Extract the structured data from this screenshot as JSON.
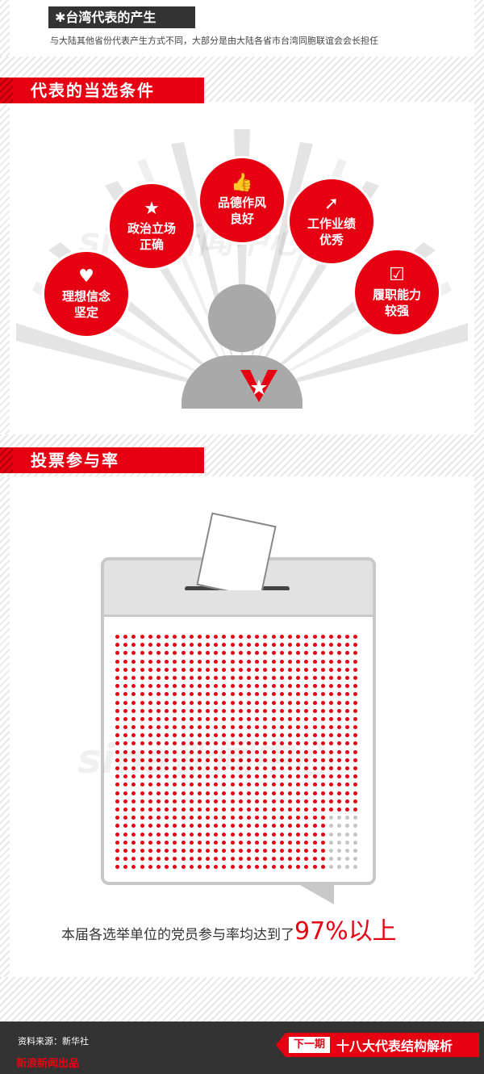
{
  "taiwan": {
    "title": "台湾代表的产生",
    "bullet": "✱",
    "desc": "与大陆其他省份代表产生方式不同，大部分是由大陆各省市台湾同胞联谊会会长担任"
  },
  "conditions": {
    "heading": "代表的当选条件",
    "items": [
      {
        "line1": "理想信念",
        "line2": "坚定",
        "icon": "heart-icon",
        "glyph": "♥"
      },
      {
        "line1": "政治立场",
        "line2": "正确",
        "icon": "star-icon",
        "glyph": "★"
      },
      {
        "line1": "品德作风",
        "line2": "良好",
        "icon": "thumbs-up-icon",
        "glyph": "👍"
      },
      {
        "line1": "工作业绩",
        "line2": "优秀",
        "icon": "arrow-up-icon",
        "glyph": "➚"
      },
      {
        "line1": "履职能力",
        "line2": "较强",
        "icon": "checkbox-icon",
        "glyph": "☑"
      }
    ]
  },
  "turnout": {
    "heading": "投票参与率",
    "caption_text": "本届各选举单位的党员参与率均达到了",
    "caption_value": "97%以上",
    "share_filled": 0.97
  },
  "watermark": "sina新闻中心",
  "footer": {
    "source": "资料来源：新华社",
    "produced_by": "新浪新闻出品",
    "next_tag": "下一期",
    "next_title": "十八大代表结构解析"
  },
  "colors": {
    "accent": "#e60012",
    "dark": "#333333",
    "gray": "#bcbcbc"
  }
}
